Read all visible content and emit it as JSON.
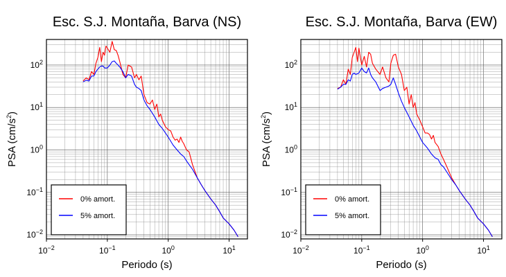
{
  "chart_data": [
    {
      "type": "line",
      "title": "Esc. S.J. Montaña, Barva (NS)",
      "xlabel": "Periodo (s)",
      "ylabel_main": "PSA (cm/s",
      "ylabel_sup": "2",
      "ylabel_close": ")",
      "xscale": "log",
      "yscale": "log",
      "xlim": [
        0.01,
        20
      ],
      "ylim": [
        0.008,
        400
      ],
      "grid": true,
      "legend_position": "bottom-left",
      "x_ticks": [
        {
          "base": "10",
          "exp": "−2"
        },
        {
          "base": "10",
          "exp": "−1"
        },
        {
          "base": "10",
          "exp": "0"
        },
        {
          "base": "10",
          "exp": "1"
        }
      ],
      "y_ticks": [
        {
          "base": "10",
          "exp": "−2"
        },
        {
          "base": "10",
          "exp": "−1"
        },
        {
          "base": "10",
          "exp": "0"
        },
        {
          "base": "10",
          "exp": "1"
        },
        {
          "base": "10",
          "exp": "2"
        }
      ],
      "series": [
        {
          "name": "0% amort.",
          "color": "#ff0000",
          "x": [
            0.04,
            0.045,
            0.05,
            0.055,
            0.06,
            0.065,
            0.07,
            0.075,
            0.08,
            0.085,
            0.09,
            0.095,
            0.1,
            0.11,
            0.12,
            0.13,
            0.14,
            0.15,
            0.16,
            0.18,
            0.2,
            0.22,
            0.25,
            0.28,
            0.3,
            0.33,
            0.36,
            0.4,
            0.45,
            0.5,
            0.55,
            0.6,
            0.65,
            0.7,
            0.75,
            0.8,
            0.9,
            1.0,
            1.1,
            1.2,
            1.3,
            1.4,
            1.5,
            1.6,
            1.7,
            1.8,
            2.0,
            2.2,
            2.5,
            3.0,
            3.5,
            4.0,
            5.0,
            6.0,
            7.0,
            8.0,
            10.0,
            12.0,
            14.0
          ],
          "y": [
            42,
            50,
            45,
            70,
            60,
            110,
            150,
            260,
            120,
            200,
            170,
            280,
            250,
            200,
            360,
            230,
            220,
            170,
            120,
            60,
            50,
            100,
            90,
            50,
            60,
            45,
            55,
            20,
            13,
            12,
            15,
            9,
            12,
            6,
            7,
            5,
            3.5,
            3.0,
            2.8,
            2.0,
            1.7,
            1.8,
            1.5,
            2.0,
            1.6,
            1.4,
            1.0,
            0.9,
            0.45,
            0.22,
            0.15,
            0.11,
            0.07,
            0.05,
            0.035,
            0.025,
            0.018,
            0.013,
            0.009
          ]
        },
        {
          "name": "5% amort.",
          "color": "#0000ff",
          "x": [
            0.04,
            0.045,
            0.05,
            0.055,
            0.06,
            0.065,
            0.07,
            0.075,
            0.08,
            0.085,
            0.09,
            0.1,
            0.11,
            0.12,
            0.13,
            0.14,
            0.15,
            0.16,
            0.18,
            0.2,
            0.22,
            0.25,
            0.28,
            0.3,
            0.33,
            0.36,
            0.4,
            0.45,
            0.5,
            0.6,
            0.7,
            0.8,
            0.9,
            1.0,
            1.2,
            1.4,
            1.6,
            1.8,
            2.0,
            2.2,
            2.5,
            3.0,
            3.5,
            4.0,
            5.0,
            6.0,
            7.0,
            8.0,
            10.0,
            12.0,
            14.0
          ],
          "y": [
            40,
            44,
            42,
            55,
            55,
            70,
            80,
            90,
            95,
            95,
            85,
            85,
            100,
            120,
            125,
            110,
            100,
            90,
            70,
            50,
            60,
            55,
            35,
            30,
            28,
            25,
            15,
            11,
            9,
            6,
            4,
            3.2,
            2.5,
            2.0,
            1.3,
            1.0,
            0.8,
            0.7,
            0.55,
            0.45,
            0.35,
            0.22,
            0.15,
            0.11,
            0.07,
            0.05,
            0.035,
            0.025,
            0.018,
            0.013,
            0.009
          ]
        }
      ]
    },
    {
      "type": "line",
      "title": "Esc. S.J. Montaña, Barva (EW)",
      "xlabel": "Periodo (s)",
      "ylabel_main": "PSA (cm/s",
      "ylabel_sup": "2",
      "ylabel_close": ")",
      "xscale": "log",
      "yscale": "log",
      "xlim": [
        0.01,
        20
      ],
      "ylim": [
        0.008,
        400
      ],
      "grid": true,
      "legend_position": "bottom-left",
      "x_ticks": [
        {
          "base": "10",
          "exp": "−2"
        },
        {
          "base": "10",
          "exp": "−1"
        },
        {
          "base": "10",
          "exp": "0"
        },
        {
          "base": "10",
          "exp": "1"
        }
      ],
      "y_ticks": [
        {
          "base": "10",
          "exp": "−2"
        },
        {
          "base": "10",
          "exp": "−1"
        },
        {
          "base": "10",
          "exp": "0"
        },
        {
          "base": "10",
          "exp": "1"
        },
        {
          "base": "10",
          "exp": "2"
        }
      ],
      "series": [
        {
          "name": "0% amort.",
          "color": "#ff0000",
          "x": [
            0.04,
            0.045,
            0.05,
            0.055,
            0.06,
            0.065,
            0.07,
            0.075,
            0.08,
            0.085,
            0.09,
            0.095,
            0.1,
            0.11,
            0.12,
            0.13,
            0.14,
            0.15,
            0.17,
            0.2,
            0.22,
            0.25,
            0.28,
            0.3,
            0.33,
            0.36,
            0.4,
            0.45,
            0.5,
            0.55,
            0.6,
            0.65,
            0.7,
            0.75,
            0.8,
            0.9,
            1.0,
            1.1,
            1.2,
            1.3,
            1.4,
            1.5,
            1.6,
            1.8,
            2.0,
            2.2,
            2.5,
            3.0,
            3.5,
            4.0,
            5.0,
            6.0,
            7.0,
            8.0,
            10.0,
            12.0,
            14.0
          ],
          "y": [
            28,
            30,
            45,
            35,
            80,
            60,
            150,
            200,
            260,
            120,
            250,
            150,
            100,
            160,
            90,
            200,
            180,
            110,
            80,
            60,
            90,
            50,
            40,
            110,
            170,
            180,
            90,
            60,
            25,
            30,
            12,
            20,
            10,
            13,
            7,
            5,
            3.5,
            2.5,
            2.5,
            2.3,
            1.8,
            2.2,
            1.5,
            1.2,
            0.8,
            0.6,
            0.4,
            0.22,
            0.15,
            0.11,
            0.07,
            0.05,
            0.035,
            0.025,
            0.018,
            0.013,
            0.009
          ]
        },
        {
          "name": "5% amort.",
          "color": "#0000ff",
          "x": [
            0.04,
            0.045,
            0.05,
            0.055,
            0.06,
            0.065,
            0.07,
            0.075,
            0.08,
            0.09,
            0.1,
            0.11,
            0.12,
            0.13,
            0.14,
            0.15,
            0.17,
            0.2,
            0.22,
            0.25,
            0.28,
            0.3,
            0.33,
            0.36,
            0.4,
            0.45,
            0.5,
            0.6,
            0.7,
            0.8,
            0.9,
            1.0,
            1.2,
            1.4,
            1.6,
            1.8,
            2.0,
            2.2,
            2.5,
            3.0,
            3.5,
            4.0,
            5.0,
            6.0,
            7.0,
            8.0,
            10.0,
            12.0,
            14.0
          ],
          "y": [
            27,
            30,
            35,
            35,
            45,
            42,
            60,
            65,
            60,
            65,
            85,
            70,
            65,
            85,
            60,
            50,
            40,
            25,
            28,
            30,
            32,
            35,
            50,
            35,
            22,
            14,
            10,
            6,
            3.8,
            2.8,
            2.0,
            1.5,
            1.1,
            0.8,
            0.65,
            0.6,
            0.45,
            0.4,
            0.3,
            0.2,
            0.15,
            0.11,
            0.07,
            0.05,
            0.035,
            0.025,
            0.018,
            0.013,
            0.009
          ]
        }
      ]
    }
  ]
}
